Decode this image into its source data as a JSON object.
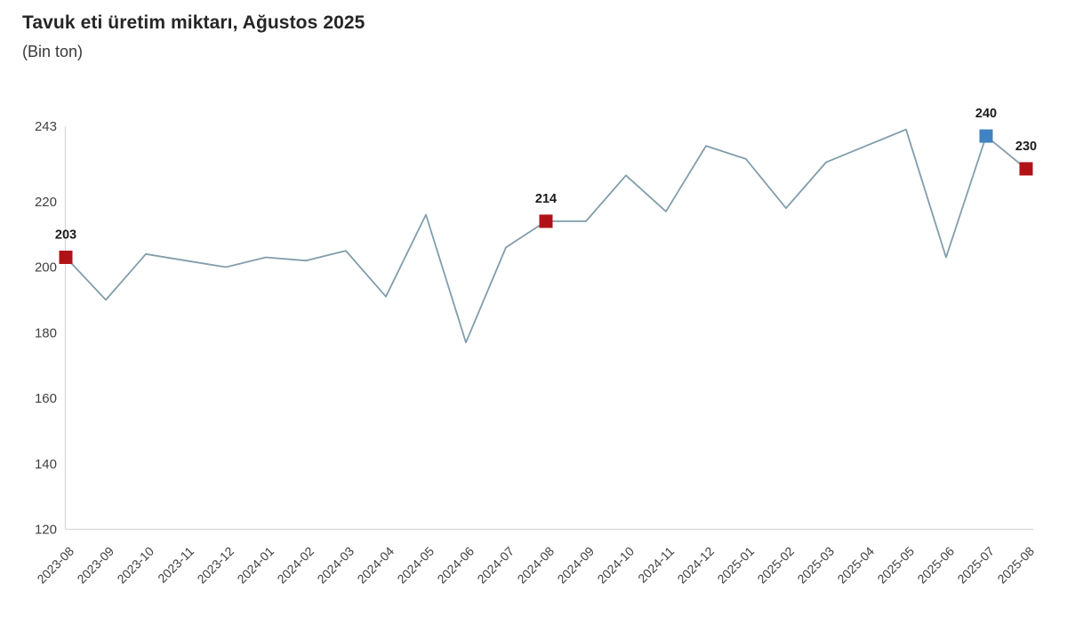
{
  "header": {
    "title": "Tavuk eti üretim miktarı, Ağustos 2025",
    "subtitle": "(Bin ton)"
  },
  "colors": {
    "line": "#829dac",
    "axis_line": "#d9d9d9",
    "tick_text": "#404040",
    "point_label_text": "#1a1a1a",
    "highlight_red": "#b01218",
    "highlight_blue": "#3f83c2"
  },
  "chart_data": {
    "type": "line",
    "title": "Tavuk eti üretim miktarı, Ağustos 2025",
    "subtitle": "(Bin ton)",
    "unit": "Bin ton",
    "xlabel": "",
    "ylabel": "",
    "ylim": [
      120,
      243
    ],
    "yticks": [
      120,
      140,
      160,
      180,
      200,
      220,
      243
    ],
    "grid": false,
    "legend": false,
    "categories": [
      "2023-08",
      "2023-09",
      "2023-10",
      "2023-11",
      "2023-12",
      "2024-01",
      "2024-02",
      "2024-03",
      "2024-04",
      "2024-05",
      "2024-06",
      "2024-07",
      "2024-08",
      "2024-09",
      "2024-10",
      "2024-11",
      "2024-12",
      "2025-01",
      "2025-02",
      "2025-03",
      "2025-04",
      "2025-05",
      "2025-06",
      "2025-07",
      "2025-08"
    ],
    "values": [
      203,
      190,
      204,
      202,
      200,
      203,
      202,
      205,
      191,
      216,
      177,
      206,
      214,
      214,
      228,
      217,
      237,
      233,
      218,
      232,
      237,
      242,
      203,
      240,
      230
    ],
    "highlighted_points": [
      {
        "index": 0,
        "category": "2023-08",
        "value": 203,
        "label": "203",
        "color_key": "highlight_red"
      },
      {
        "index": 12,
        "category": "2024-08",
        "value": 214,
        "label": "214",
        "color_key": "highlight_red"
      },
      {
        "index": 23,
        "category": "2025-07",
        "value": 240,
        "label": "240",
        "color_key": "highlight_blue"
      },
      {
        "index": 24,
        "category": "2025-08",
        "value": 230,
        "label": "230",
        "color_key": "highlight_red"
      }
    ]
  }
}
